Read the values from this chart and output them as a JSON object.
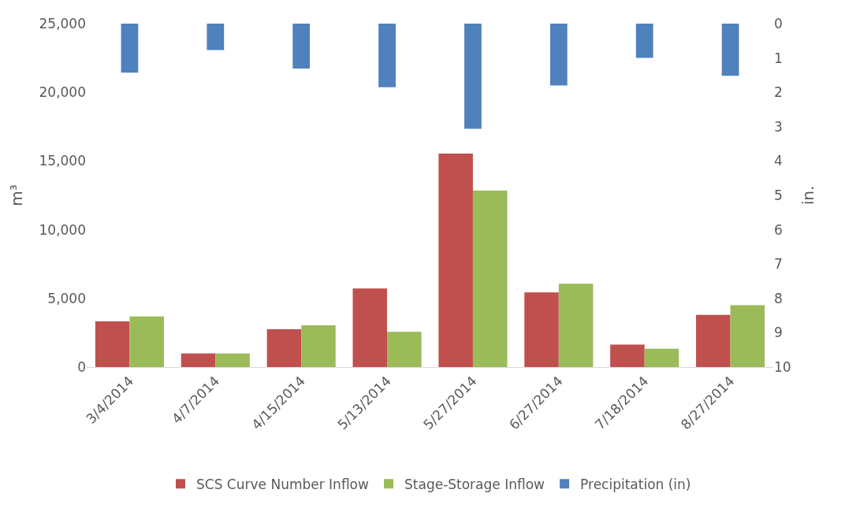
{
  "chart_data": {
    "type": "bar",
    "categories": [
      "3/4/2014",
      "4/7/2014",
      "4/15/2014",
      "5/13/2014",
      "5/27/2014",
      "6/27/2014",
      "7/18/2014",
      "8/27/2014"
    ],
    "series": [
      {
        "name": "SCS Curve Number Inflow",
        "color": "#c0504d",
        "values": [
          3330,
          990,
          2750,
          5720,
          15540,
          5430,
          1640,
          3800
        ]
      },
      {
        "name": "Stage-Storage Inflow",
        "color": "#9bbb59",
        "values": [
          3680,
          990,
          3040,
          2570,
          12850,
          6070,
          1340,
          4500
        ]
      },
      {
        "name": "Precipitation (in)",
        "color": "#4f81bd",
        "axis": "y2",
        "values": [
          1.43,
          0.77,
          1.31,
          1.85,
          3.06,
          1.8,
          1.0,
          1.52
        ]
      }
    ],
    "ylabel": "m³",
    "y2label": "in.",
    "ylim": [
      0,
      25000
    ],
    "yticks": [
      0,
      {
        "value": 5000,
        "label": "5,000"
      },
      {
        "value": 10000,
        "label": "10,000"
      },
      {
        "value": 15000,
        "label": "15,000"
      },
      {
        "value": 20000,
        "label": "20,000"
      },
      {
        "value": 25000,
        "label": "25,000"
      }
    ],
    "y2lim": [
      10,
      0
    ],
    "y2ticks": [
      0,
      1,
      2,
      3,
      4,
      5,
      6,
      7,
      8,
      9,
      10
    ],
    "grid": false,
    "legend": "bottom"
  }
}
